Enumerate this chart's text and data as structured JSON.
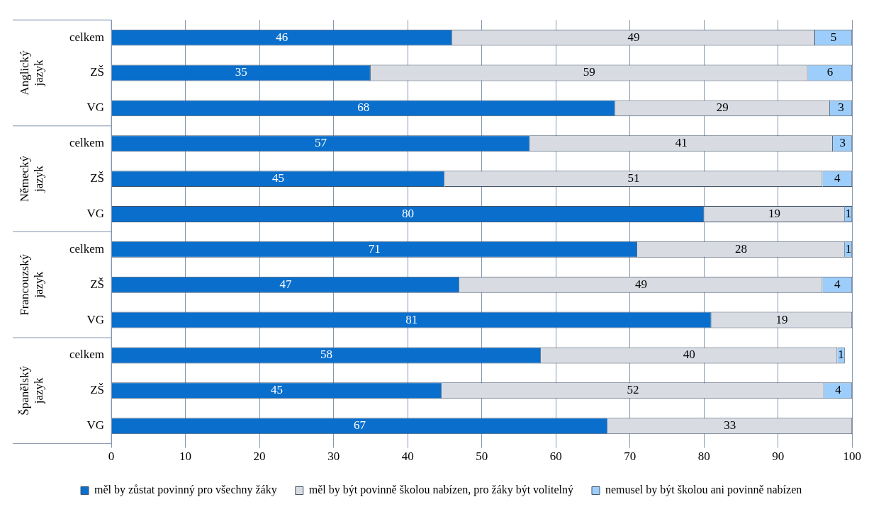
{
  "chart_data": {
    "type": "bar",
    "orientation": "horizontal",
    "stacked": true,
    "categories": [
      "celkem",
      "ZŠ",
      "VG",
      "celkem",
      "ZŠ",
      "VG",
      "celkem",
      "ZŠ",
      "VG",
      "celkem",
      "ZŠ",
      "VG"
    ],
    "annotations": [
      "Anglický jazyk",
      "Německý jazyk",
      "Francouzský jazyk",
      "Španělský jazyk"
    ],
    "series": [
      {
        "name": "měl by zůstat povinný pro všechny žáky",
        "color": "#0a6fcc",
        "values": [
          46,
          35,
          68,
          56.5,
          45,
          80,
          71,
          47,
          81,
          58,
          44.6,
          67
        ],
        "value_labels": [
          "46",
          "35",
          "68",
          "57",
          "45",
          "80",
          "71",
          "47",
          "81",
          "58",
          "45",
          "67"
        ]
      },
      {
        "name": "měl by být povinně školou nabízen, pro žáky být volitelný",
        "color": "#d8dce2",
        "values": [
          49,
          59,
          29,
          40.9,
          51,
          19,
          28,
          49,
          19,
          40,
          51.6,
          33
        ],
        "value_labels": [
          "49",
          "59",
          "29",
          "41",
          "51",
          "19",
          "28",
          "49",
          "19",
          "40",
          "52",
          "33"
        ]
      },
      {
        "name": "nemusel by být školou ani povinně nabízen",
        "color": "#9dcdfa",
        "values": [
          5,
          6,
          3,
          2.6,
          4,
          1,
          1,
          4,
          null,
          1,
          3.8,
          null
        ],
        "value_labels": [
          "5",
          "6",
          "3",
          "3",
          "4",
          "1",
          "1",
          "4",
          null,
          "1",
          "4",
          null
        ]
      }
    ],
    "xlim": [
      0,
      100
    ],
    "xticks": [
      0,
      10,
      20,
      30,
      40,
      50,
      60,
      70,
      80,
      90,
      100
    ],
    "grid": "x",
    "legend": "bottom"
  }
}
